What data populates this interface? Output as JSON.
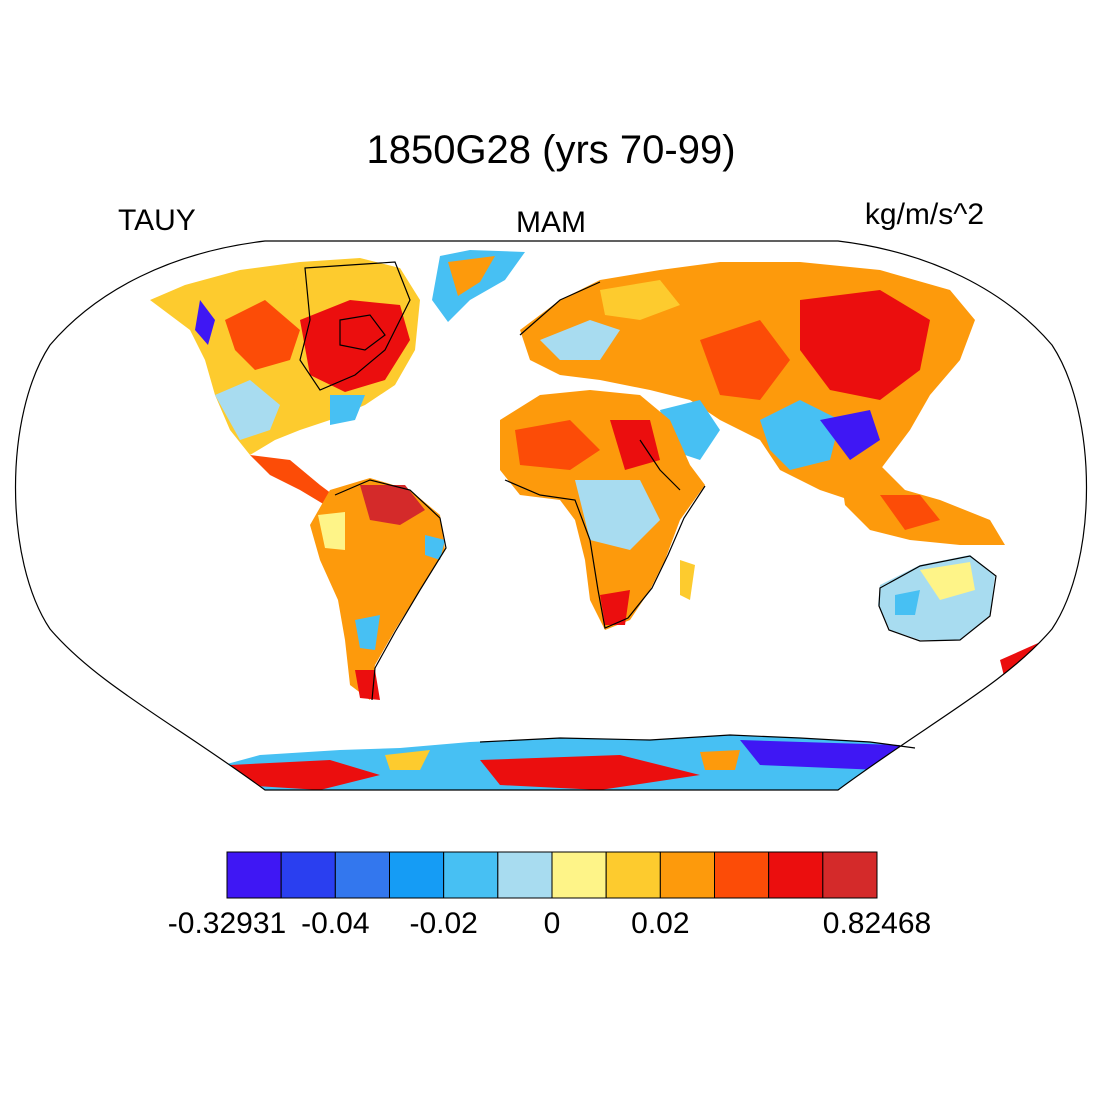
{
  "title": "1850G28 (yrs 70-99)",
  "left_label": "TAUY",
  "center_label": "MAM",
  "right_label": "kg/m/s^2",
  "colorbar": {
    "colors": [
      "#3f17f4",
      "#2a3ff0",
      "#3377ee",
      "#159cf5",
      "#47c0f3",
      "#a8dcf0",
      "#fef488",
      "#fdcb2e",
      "#fd9a0c",
      "#fc4c07",
      "#eb0e0e",
      "#d42a2a"
    ],
    "labels": [
      {
        "text": "-0.32931",
        "edge": 0
      },
      {
        "text": "-0.04",
        "edge": 2
      },
      {
        "text": "-0.02",
        "edge": 4
      },
      {
        "text": "0",
        "edge": 6
      },
      {
        "text": "0.02",
        "edge": 8
      },
      {
        "text": "0.82468",
        "edge": 12
      }
    ]
  },
  "map": {
    "projection": "Robinson (global)",
    "field": "TAUY",
    "season": "MAM"
  }
}
